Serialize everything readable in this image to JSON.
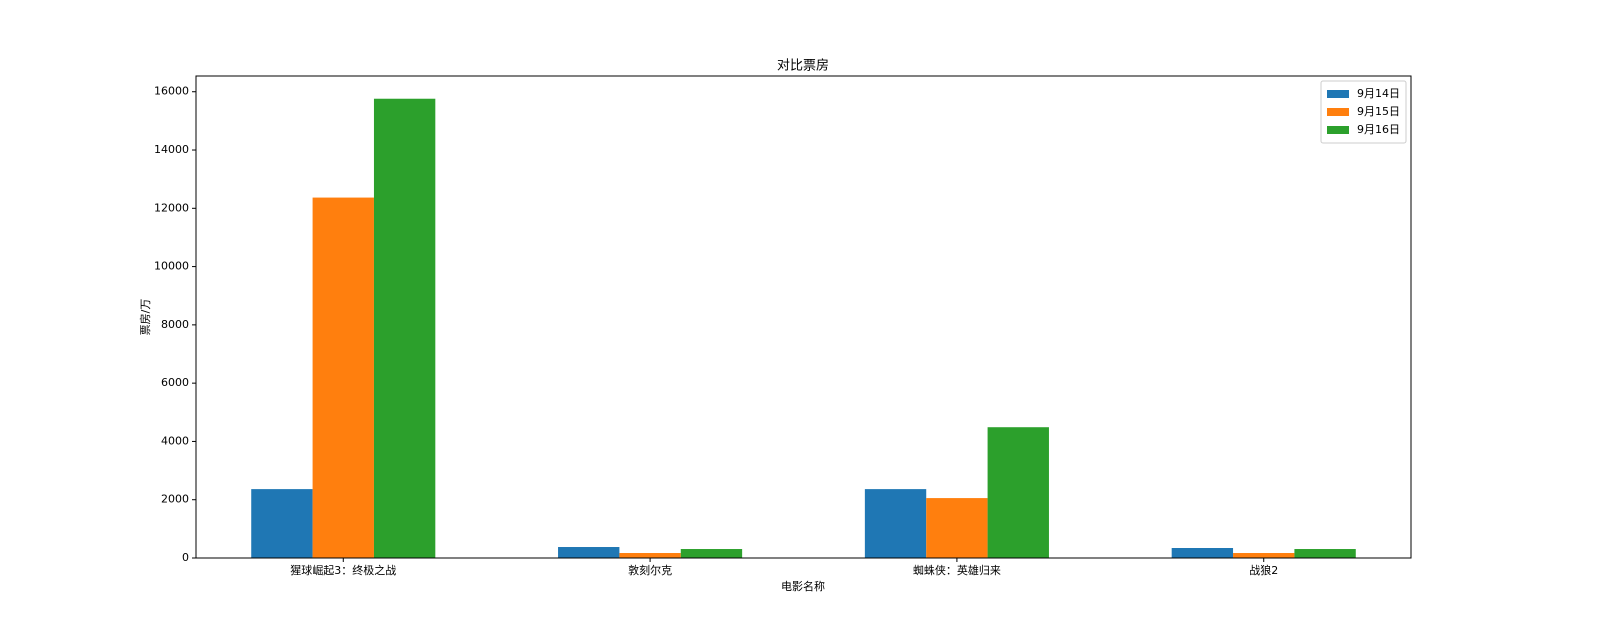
{
  "chart_data": {
    "type": "bar",
    "title": "对比票房",
    "x_label": "电影名称",
    "y_label": "票房/万",
    "categories": [
      "猩球崛起3：终极之战",
      "敦刻尔克",
      "蜘蛛侠：英雄归来",
      "战狼2"
    ],
    "series": [
      {
        "name": "9月14日",
        "color": "#1f77b4",
        "values": [
          2364,
          377,
          2364,
          343
        ]
      },
      {
        "name": "9月15日",
        "color": "#ff7f0e",
        "values": [
          12368,
          171,
          2056,
          171
        ]
      },
      {
        "name": "9月16日",
        "color": "#2ca02c",
        "values": [
          15760,
          308,
          4488,
          308
        ]
      }
    ],
    "ylim": [
      0,
      16540
    ],
    "yticks": [
      0,
      2000,
      4000,
      6000,
      8000,
      10000,
      12000,
      14000,
      16000
    ],
    "grid": false,
    "legend": "upper right"
  }
}
